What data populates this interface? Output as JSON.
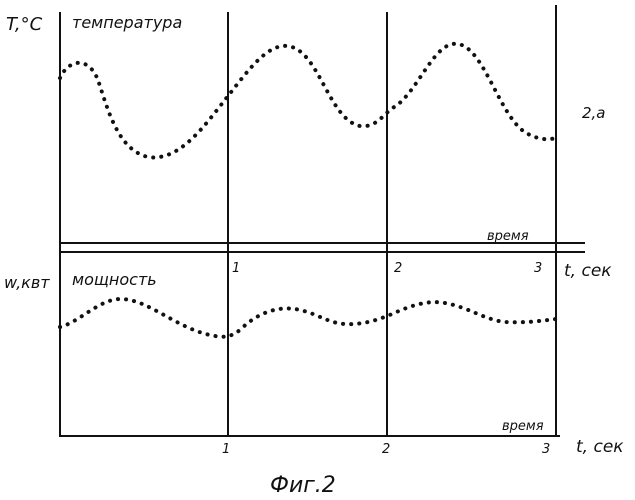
{
  "top_panel": {
    "y_label": "T,°C",
    "title": "температура",
    "curve_label": "2,а",
    "x_axis_label": "время"
  },
  "bottom_panel": {
    "y_label": "w,квт",
    "title": "мощность",
    "x_axis_label": "время"
  },
  "time_axis": {
    "label": "t, сек",
    "ticks": [
      "1",
      "2",
      "3"
    ]
  },
  "caption": "Фиг.2"
}
